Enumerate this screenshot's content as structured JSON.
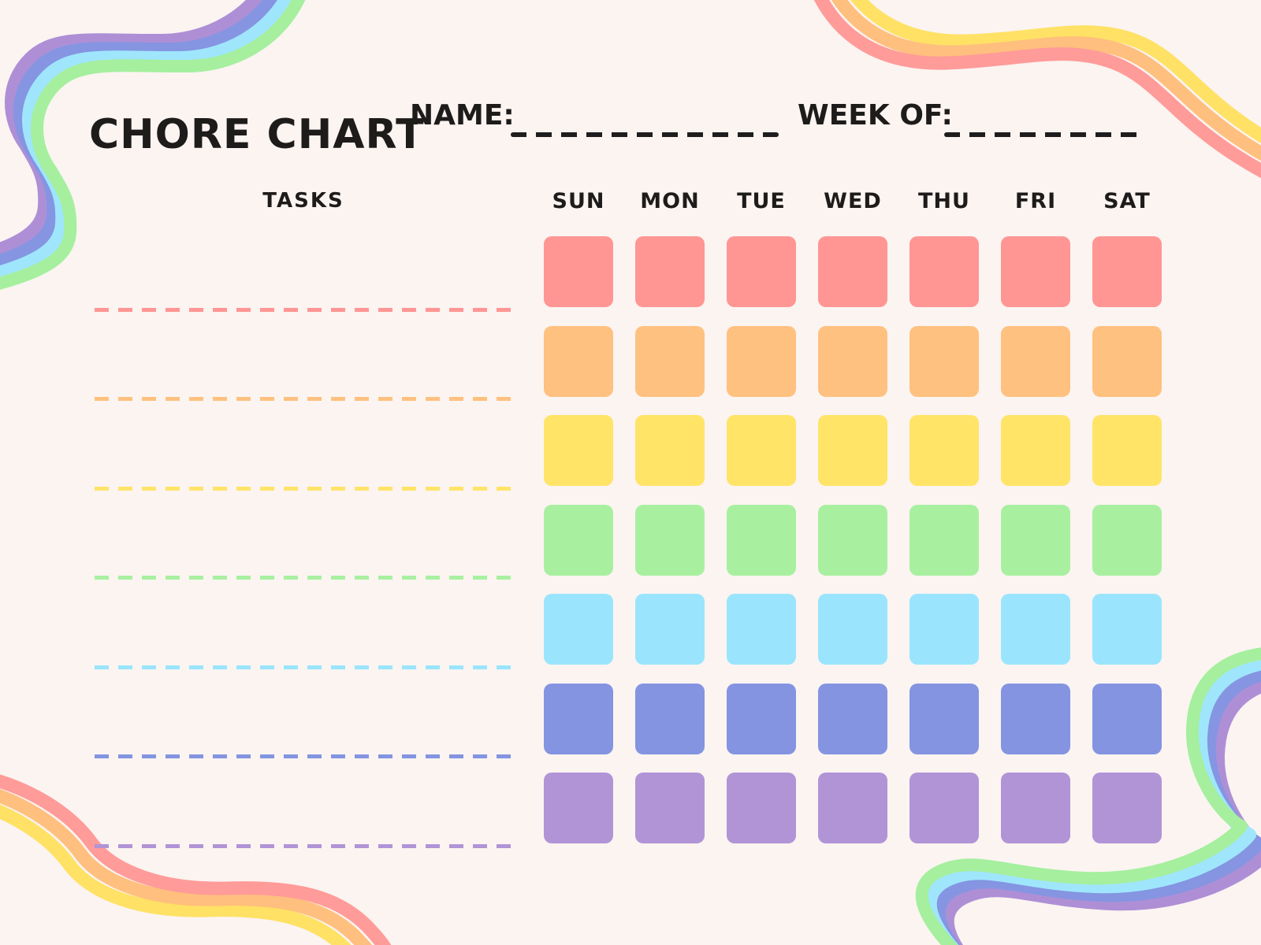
{
  "page": {
    "background": "#FBF4F1",
    "text_color": "#1E1B1B"
  },
  "header": {
    "title": "CHORE CHART",
    "name_label": "NAME:",
    "name_value": "",
    "week_of_label": "WEEK OF:",
    "week_of_value": ""
  },
  "table": {
    "tasks_header": "TASKS",
    "day_headers": [
      "SUN",
      "MON",
      "TUE",
      "WED",
      "THU",
      "FRI",
      "SAT"
    ],
    "rows": [
      {
        "task": "",
        "color": "#FF9694"
      },
      {
        "task": "",
        "color": "#FFC180"
      },
      {
        "task": "",
        "color": "#FFE468"
      },
      {
        "task": "",
        "color": "#A8F0A0"
      },
      {
        "task": "",
        "color": "#9AE5FD"
      },
      {
        "task": "",
        "color": "#8494E1"
      },
      {
        "task": "",
        "color": "#B194D6"
      }
    ]
  },
  "decorations": {
    "blank_dash_color": "#1F1D1D",
    "cool_rainbow_stripes": [
      "#AE8FD6",
      "#8595E1",
      "#9FE6FC",
      "#A5EF9E"
    ],
    "warm_rainbow_stripes": [
      "#FFE165",
      "#FFBF7E",
      "#FF9B99"
    ]
  }
}
